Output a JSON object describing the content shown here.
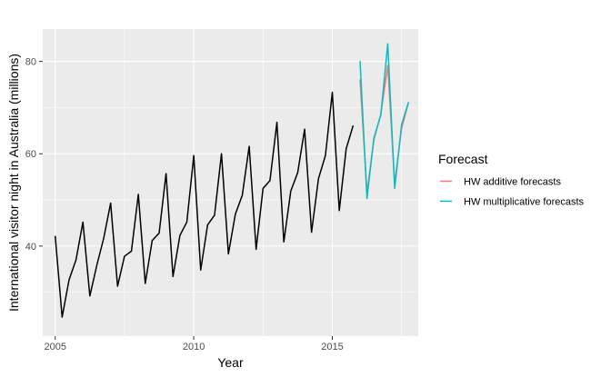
{
  "chart_data": {
    "type": "line",
    "xlabel": "Year",
    "ylabel": "International visitor night in Australia (millions)",
    "xlim": [
      2004.55,
      2018.1
    ],
    "ylim": [
      20.5,
      87.0
    ],
    "x_ticks": [
      2005,
      2010,
      2015
    ],
    "x_tick_labels": [
      "2005",
      "2010",
      "2015"
    ],
    "y_ticks": [
      40,
      60,
      80
    ],
    "y_tick_labels": [
      "40",
      "60",
      "80"
    ],
    "grid": true,
    "legend": {
      "title": "Forecast",
      "position": "right"
    },
    "series": [
      {
        "key": "history",
        "color": "#000000",
        "x": [
          2005.0,
          2005.25,
          2005.5,
          2005.75,
          2006.0,
          2006.25,
          2006.5,
          2006.75,
          2007.0,
          2007.25,
          2007.5,
          2007.75,
          2008.0,
          2008.25,
          2008.5,
          2008.75,
          2009.0,
          2009.25,
          2009.5,
          2009.75,
          2010.0,
          2010.25,
          2010.5,
          2010.75,
          2011.0,
          2011.25,
          2011.5,
          2011.75,
          2012.0,
          2012.25,
          2012.5,
          2012.75,
          2013.0,
          2013.25,
          2013.5,
          2013.75,
          2014.0,
          2014.25,
          2014.5,
          2014.75,
          2015.0,
          2015.25,
          2015.5,
          2015.75
        ],
        "values": [
          42.2,
          24.6,
          32.7,
          37.0,
          45.2,
          29.2,
          35.8,
          41.7,
          49.3,
          31.3,
          37.8,
          38.9,
          51.2,
          31.9,
          41.2,
          42.8,
          55.7,
          33.4,
          42.3,
          45.2,
          59.6,
          34.8,
          44.6,
          46.7,
          60.0,
          38.3,
          46.9,
          51.0,
          61.6,
          39.3,
          52.5,
          54.2,
          66.8,
          40.9,
          51.9,
          55.9,
          65.3,
          43.0,
          54.6,
          59.6,
          73.3,
          47.7,
          61.1,
          66.1
        ]
      },
      {
        "key": "additive",
        "name": "HW additive forecasts",
        "color": "#F8766D",
        "x": [
          2016.0,
          2016.25,
          2016.5,
          2016.75,
          2017.0,
          2017.25,
          2017.5,
          2017.75
        ],
        "values": [
          76.1,
          51.6,
          63.0,
          68.6,
          79.1,
          53.6,
          65.5,
          71.1
        ]
      },
      {
        "key": "multiplicative",
        "name": "HW multiplicative forecasts",
        "color": "#00BFC4",
        "x": [
          2016.0,
          2016.25,
          2016.5,
          2016.75,
          2017.0,
          2017.25,
          2017.5,
          2017.75
        ],
        "values": [
          80.1,
          50.3,
          63.4,
          68.4,
          83.8,
          52.5,
          66.3,
          71.2
        ]
      }
    ]
  }
}
